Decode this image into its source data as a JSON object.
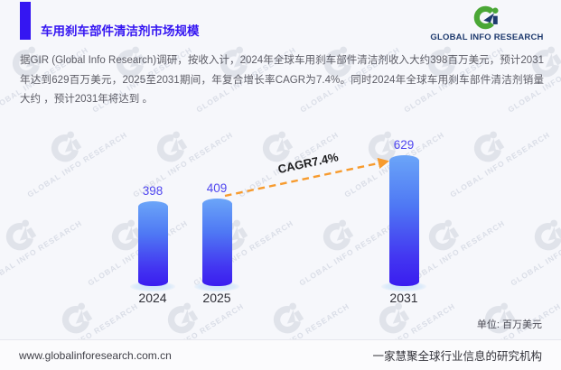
{
  "header": {
    "title": "车用刹车部件清洁剂市场规模"
  },
  "logo": {
    "mark": "Gi",
    "text": "GLOBAL INFO RESEARCH",
    "green": "#4aa736",
    "navy": "#1e3a6e"
  },
  "intro": {
    "text": "据GIR (Global Info Research)调研，按收入计，2024年全球车用刹车部件清洁剂收入大约398百万美元，预计2031年达到629百万美元，2025至2031期间，年复合增长率CAGR为7.4%。同时2024年全球车用刹车部件清洁剂销量大约 ，预计2031年将达到 。"
  },
  "chart_data": {
    "type": "bar",
    "title": "车用刹车部件清洁剂市场规模",
    "categories": [
      "2024",
      "2025",
      "2031"
    ],
    "values": [
      398,
      409,
      629
    ],
    "annotation": "CAGR7.4%",
    "unit_label": "单位: 百万美元",
    "ylim": [
      0,
      700
    ],
    "grid": false,
    "bar_color_top": "#6ba5f8",
    "bar_color_bottom": "#3a1df0",
    "value_label_color": "#4f46ef",
    "arrow_color": "#f79b2e"
  },
  "watermark": {
    "mark": "Gi",
    "text": "GLOBAL INFO RESEARCH"
  },
  "footer": {
    "url": "www.globalinforesearch.com.cn",
    "slogan": "一家慧聚全球行业信息的研究机构"
  }
}
